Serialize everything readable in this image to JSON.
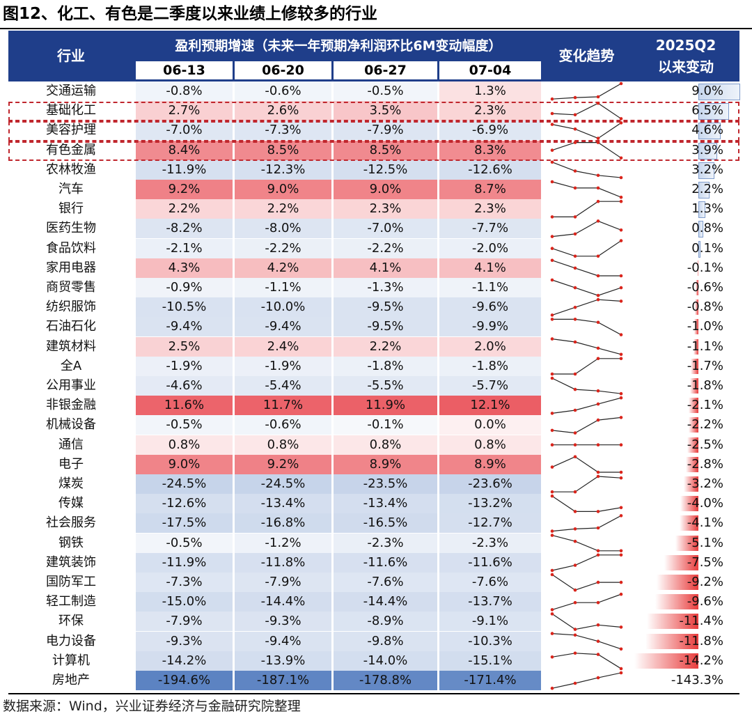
{
  "figure_title": "图12、化工、有色是二季度以来业绩上修较多的行业",
  "header": {
    "industry": "行业",
    "growth_group": "盈利预期增速（未来一年预期净利润环比6M变动幅度）",
    "dates": [
      "06-13",
      "06-20",
      "06-27",
      "07-04"
    ],
    "trend": "变化趋势",
    "since_line1": "2025Q2",
    "since_line2": "以来变动"
  },
  "colors": {
    "header_bg": "#1f3e8a",
    "positive": "#e8474f",
    "negative": "#4f79bd",
    "highlight_border": "#c0262d",
    "bar_positive_fill": "#c9d8ee",
    "bar_negative_fill": "#e83c3c",
    "sparkline_line": "#222222",
    "sparkline_marker": "#d9251c"
  },
  "rows": [
    {
      "name": "交通运输",
      "values": [
        "-0.8%",
        "-0.6%",
        "-0.5%",
        "1.3%"
      ],
      "nums": [
        -0.8,
        -0.6,
        -0.5,
        1.3
      ],
      "change": "9.0%",
      "change_num": 9.0
    },
    {
      "name": "基础化工",
      "values": [
        "2.7%",
        "2.6%",
        "3.5%",
        "2.3%"
      ],
      "nums": [
        2.7,
        2.6,
        3.5,
        2.3
      ],
      "change": "6.5%",
      "change_num": 6.5
    },
    {
      "name": "美容护理",
      "values": [
        "-7.0%",
        "-7.3%",
        "-7.9%",
        "-6.9%"
      ],
      "nums": [
        -7.0,
        -7.3,
        -7.9,
        -6.9
      ],
      "change": "4.6%",
      "change_num": 4.6
    },
    {
      "name": "有色金属",
      "values": [
        "8.4%",
        "8.5%",
        "8.5%",
        "8.3%"
      ],
      "nums": [
        8.4,
        8.5,
        8.5,
        8.3
      ],
      "change": "3.9%",
      "change_num": 3.9
    },
    {
      "name": "农林牧渔",
      "values": [
        "-11.9%",
        "-12.3%",
        "-12.5%",
        "-12.6%"
      ],
      "nums": [
        -11.9,
        -12.3,
        -12.5,
        -12.6
      ],
      "change": "3.2%",
      "change_num": 3.2
    },
    {
      "name": "汽车",
      "values": [
        "9.2%",
        "9.0%",
        "9.0%",
        "8.7%"
      ],
      "nums": [
        9.2,
        9.0,
        9.0,
        8.7
      ],
      "change": "2.2%",
      "change_num": 2.2
    },
    {
      "name": "银行",
      "values": [
        "2.2%",
        "2.2%",
        "2.3%",
        "2.3%"
      ],
      "nums": [
        2.2,
        2.2,
        2.3,
        2.3
      ],
      "change": "1.3%",
      "change_num": 1.3
    },
    {
      "name": "医药生物",
      "values": [
        "-8.2%",
        "-8.0%",
        "-7.0%",
        "-7.7%"
      ],
      "nums": [
        -8.2,
        -8.0,
        -7.0,
        -7.7
      ],
      "change": "0.8%",
      "change_num": 0.8
    },
    {
      "name": "食品饮料",
      "values": [
        "-2.1%",
        "-2.2%",
        "-2.2%",
        "-2.0%"
      ],
      "nums": [
        -2.1,
        -2.2,
        -2.2,
        -2.0
      ],
      "change": "0.1%",
      "change_num": 0.1
    },
    {
      "name": "家用电器",
      "values": [
        "4.3%",
        "4.2%",
        "4.1%",
        "4.1%"
      ],
      "nums": [
        4.3,
        4.2,
        4.1,
        4.1
      ],
      "change": "-0.1%",
      "change_num": -0.1
    },
    {
      "name": "商贸零售",
      "values": [
        "-0.9%",
        "-1.1%",
        "-1.3%",
        "-1.1%"
      ],
      "nums": [
        -0.9,
        -1.1,
        -1.3,
        -1.1
      ],
      "change": "-0.6%",
      "change_num": -0.6
    },
    {
      "name": "纺织服饰",
      "values": [
        "-10.5%",
        "-10.0%",
        "-9.5%",
        "-9.6%"
      ],
      "nums": [
        -10.5,
        -10.0,
        -9.5,
        -9.6
      ],
      "change": "-0.8%",
      "change_num": -0.8
    },
    {
      "name": "石油石化",
      "values": [
        "-9.4%",
        "-9.4%",
        "-9.5%",
        "-9.9%"
      ],
      "nums": [
        -9.4,
        -9.4,
        -9.5,
        -9.9
      ],
      "change": "-1.0%",
      "change_num": -1.0
    },
    {
      "name": "建筑材料",
      "values": [
        "2.5%",
        "2.4%",
        "2.2%",
        "2.0%"
      ],
      "nums": [
        2.5,
        2.4,
        2.2,
        2.0
      ],
      "change": "-1.1%",
      "change_num": -1.1
    },
    {
      "name": "全A",
      "values": [
        "-1.9%",
        "-1.9%",
        "-1.8%",
        "-1.8%"
      ],
      "nums": [
        -1.9,
        -1.9,
        -1.8,
        -1.8
      ],
      "change": "-1.7%",
      "change_num": -1.7
    },
    {
      "name": "公用事业",
      "values": [
        "-4.6%",
        "-5.4%",
        "-5.5%",
        "-5.7%"
      ],
      "nums": [
        -4.6,
        -5.4,
        -5.5,
        -5.7
      ],
      "change": "-1.8%",
      "change_num": -1.8
    },
    {
      "name": "非银金融",
      "values": [
        "11.6%",
        "11.7%",
        "11.9%",
        "12.1%"
      ],
      "nums": [
        11.6,
        11.7,
        11.9,
        12.1
      ],
      "change": "-2.1%",
      "change_num": -2.1
    },
    {
      "name": "机械设备",
      "values": [
        "-0.5%",
        "-0.6%",
        "-0.1%",
        "0.0%"
      ],
      "nums": [
        -0.5,
        -0.6,
        -0.1,
        0.0
      ],
      "change": "-2.2%",
      "change_num": -2.2
    },
    {
      "name": "通信",
      "values": [
        "0.8%",
        "0.8%",
        "0.8%",
        "0.8%"
      ],
      "nums": [
        0.8,
        0.8,
        0.8,
        0.8
      ],
      "change": "-2.5%",
      "change_num": -2.5
    },
    {
      "name": "电子",
      "values": [
        "9.0%",
        "9.2%",
        "8.9%",
        "8.9%"
      ],
      "nums": [
        9.0,
        9.2,
        8.9,
        8.9
      ],
      "change": "-2.8%",
      "change_num": -2.8
    },
    {
      "name": "煤炭",
      "values": [
        "-24.5%",
        "-24.5%",
        "-23.5%",
        "-23.6%"
      ],
      "nums": [
        -24.5,
        -24.5,
        -23.5,
        -23.6
      ],
      "change": "-3.2%",
      "change_num": -3.2
    },
    {
      "name": "传媒",
      "values": [
        "-12.6%",
        "-13.4%",
        "-13.4%",
        "-13.2%"
      ],
      "nums": [
        -12.6,
        -13.4,
        -13.4,
        -13.2
      ],
      "change": "-4.0%",
      "change_num": -4.0
    },
    {
      "name": "社会服务",
      "values": [
        "-17.5%",
        "-16.8%",
        "-16.5%",
        "-12.7%"
      ],
      "nums": [
        -17.5,
        -16.8,
        -16.5,
        -12.7
      ],
      "change": "-4.1%",
      "change_num": -4.1
    },
    {
      "name": "钢铁",
      "values": [
        "-0.5%",
        "-1.2%",
        "-2.3%",
        "-2.3%"
      ],
      "nums": [
        -0.5,
        -1.2,
        -2.3,
        -2.3
      ],
      "change": "-5.1%",
      "change_num": -5.1
    },
    {
      "name": "建筑装饰",
      "values": [
        "-11.9%",
        "-11.8%",
        "-11.6%",
        "-11.6%"
      ],
      "nums": [
        -11.9,
        -11.8,
        -11.6,
        -11.6
      ],
      "change": "-7.5%",
      "change_num": -7.5
    },
    {
      "name": "国防军工",
      "values": [
        "-7.3%",
        "-7.9%",
        "-7.6%",
        "-7.6%"
      ],
      "nums": [
        -7.3,
        -7.9,
        -7.6,
        -7.6
      ],
      "change": "-9.2%",
      "change_num": -9.2
    },
    {
      "name": "轻工制造",
      "values": [
        "-15.0%",
        "-14.4%",
        "-14.4%",
        "-13.7%"
      ],
      "nums": [
        -15.0,
        -14.4,
        -14.4,
        -13.7
      ],
      "change": "-9.6%",
      "change_num": -9.6
    },
    {
      "name": "环保",
      "values": [
        "-7.9%",
        "-9.3%",
        "-8.9%",
        "-9.1%"
      ],
      "nums": [
        -7.9,
        -9.3,
        -8.9,
        -9.1
      ],
      "change": "-11.4%",
      "change_num": -11.4
    },
    {
      "name": "电力设备",
      "values": [
        "-9.3%",
        "-9.4%",
        "-9.8%",
        "-10.3%"
      ],
      "nums": [
        -9.3,
        -9.4,
        -9.8,
        -10.3
      ],
      "change": "-11.8%",
      "change_num": -11.8
    },
    {
      "name": "计算机",
      "values": [
        "-14.2%",
        "-13.9%",
        "-14.0%",
        "-15.1%"
      ],
      "nums": [
        -14.2,
        -13.9,
        -14.0,
        -15.1
      ],
      "change": "-14.2%",
      "change_num": -14.2
    },
    {
      "name": "房地产",
      "values": [
        "-194.6%",
        "-187.1%",
        "-178.8%",
        "-171.4%"
      ],
      "nums": [
        -194.6,
        -187.1,
        -178.8,
        -171.4
      ],
      "change": "-143.3%",
      "change_num": -143.3
    }
  ],
  "highlighted_rows": [
    1,
    2,
    3
  ],
  "source": "数据来源：Wind，兴业证券经济与金融研究院整理"
}
